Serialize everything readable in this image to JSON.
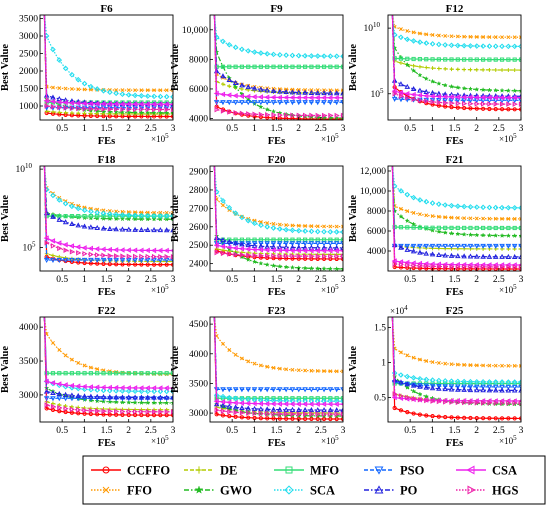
{
  "algorithms": [
    {
      "name": "CCFFO",
      "color": "#ff0000",
      "dash": "solid",
      "marker": "circle"
    },
    {
      "name": "FFO",
      "color": "#ff9900",
      "dash": "dotted",
      "marker": "x"
    },
    {
      "name": "DE",
      "color": "#b3cc00",
      "dash": "dashed",
      "marker": "plus"
    },
    {
      "name": "GWO",
      "color": "#22bb22",
      "dash": "dashdot",
      "marker": "star"
    },
    {
      "name": "MFO",
      "color": "#33dd77",
      "dash": "solid",
      "marker": "square"
    },
    {
      "name": "SCA",
      "color": "#22ddee",
      "dash": "dotted",
      "marker": "diamond"
    },
    {
      "name": "PSO",
      "color": "#1166ff",
      "dash": "dashed",
      "marker": "triangle-down"
    },
    {
      "name": "PO",
      "color": "#2222dd",
      "dash": "dashdot",
      "marker": "triangle-up"
    },
    {
      "name": "CSA",
      "color": "#ee22ee",
      "dash": "solid",
      "marker": "triangle-left"
    },
    {
      "name": "HGS",
      "color": "#ee22aa",
      "dash": "dotted",
      "marker": "triangle-right"
    }
  ],
  "chart_data": [
    {
      "title": "F6",
      "type": "line",
      "xlabel": "FEs",
      "ylabel": "Best Value",
      "x_multiplier": "×10^5",
      "xlim": [
        0,
        3
      ],
      "xticks": [
        0.5,
        1,
        1.5,
        2,
        2.5,
        3
      ],
      "scale": "linear",
      "ylim": [
        600,
        3600
      ],
      "yticks": [
        1000,
        1500,
        2000,
        2500,
        3000,
        3500
      ],
      "y_multiplier": "",
      "series": {
        "CCFFO": [
          800,
          700
        ],
        "FFO": [
          1550,
          1450
        ],
        "DE": [
          850,
          770
        ],
        "GWO": [
          1200,
          800
        ],
        "MFO": [
          1100,
          1100
        ],
        "SCA": [
          3000,
          1250
        ],
        "PSO": [
          950,
          950
        ],
        "PO": [
          1300,
          1050
        ],
        "CSA": [
          1150,
          1050
        ],
        "HGS": [
          1000,
          900
        ]
      }
    },
    {
      "title": "F9",
      "type": "line",
      "xlabel": "FEs",
      "ylabel": "Best Value",
      "x_multiplier": "×10^5",
      "xlim": [
        0,
        3
      ],
      "xticks": [
        0.5,
        1,
        1.5,
        2,
        2.5,
        3
      ],
      "scale": "linear",
      "ylim": [
        3900,
        11000
      ],
      "yticks": [
        4000,
        6000,
        8000,
        10000
      ],
      "y_multiplier": "",
      "series": {
        "CCFFO": [
          4800,
          3950
        ],
        "FFO": [
          7000,
          5900
        ],
        "DE": [
          6500,
          5700
        ],
        "GWO": [
          8500,
          4000
        ],
        "MFO": [
          7500,
          7500
        ],
        "SCA": [
          9500,
          8200
        ],
        "PSO": [
          5100,
          5100
        ],
        "PO": [
          7200,
          5700
        ],
        "CSA": [
          5700,
          5400
        ],
        "HGS": [
          4600,
          4200
        ]
      }
    },
    {
      "title": "F12",
      "type": "line",
      "xlabel": "FEs",
      "ylabel": "Best Value",
      "x_multiplier": "×10^5",
      "xlim": [
        0,
        3
      ],
      "xticks": [
        0.5,
        1,
        1.5,
        2,
        2.5,
        3
      ],
      "scale": "log",
      "ylim": [
        3,
        11
      ],
      "yticks": [
        5,
        10
      ],
      "y_multiplier": "",
      "series": {
        "CCFFO": [
          5.5,
          3.8
        ],
        "FFO": [
          10.1,
          9.3
        ],
        "DE": [
          7.5,
          6.8
        ],
        "GWO": [
          8.5,
          5.2
        ],
        "MFO": [
          7.7,
          7.6
        ],
        "SCA": [
          9.5,
          8.6
        ],
        "PSO": [
          4.6,
          4.5
        ],
        "PO": [
          6.0,
          4.8
        ],
        "CSA": [
          5.2,
          4.7
        ],
        "HGS": [
          5.0,
          4.2
        ]
      }
    },
    {
      "title": "F18",
      "type": "line",
      "xlabel": "FEs",
      "ylabel": "Best Value",
      "x_multiplier": "×10^5",
      "xlim": [
        0,
        3
      ],
      "xticks": [
        0.5,
        1,
        1.5,
        2,
        2.5,
        3
      ],
      "scale": "log",
      "ylim": [
        3.5,
        10.2
      ],
      "yticks": [
        5,
        10
      ],
      "y_multiplier": "",
      "series": {
        "CCFFO": [
          4.4,
          3.9
        ],
        "FFO": [
          8.8,
          7.2
        ],
        "DE": [
          4.6,
          4.1
        ],
        "GWO": [
          7.2,
          6.8
        ],
        "MFO": [
          7.0,
          7.0
        ],
        "SCA": [
          8.7,
          7.0
        ],
        "PSO": [
          4.2,
          4.2
        ],
        "PO": [
          7.2,
          6.1
        ],
        "CSA": [
          5.6,
          4.8
        ],
        "HGS": [
          5.3,
          4.4
        ]
      }
    },
    {
      "title": "F20",
      "type": "line",
      "xlabel": "FEs",
      "ylabel": "Best Value",
      "x_multiplier": "×10^5",
      "xlim": [
        0,
        3
      ],
      "xticks": [
        0.5,
        1,
        1.5,
        2,
        2.5,
        3
      ],
      "scale": "linear",
      "ylim": [
        2360,
        2930
      ],
      "yticks": [
        2400,
        2500,
        2600,
        2700,
        2800,
        2900
      ],
      "y_multiplier": "",
      "series": {
        "CCFFO": [
          2470,
          2425
        ],
        "FFO": [
          2750,
          2600
        ],
        "DE": [
          2480,
          2450
        ],
        "GWO": [
          2550,
          2370
        ],
        "MFO": [
          2530,
          2530
        ],
        "SCA": [
          2790,
          2570
        ],
        "PSO": [
          2510,
          2510
        ],
        "PO": [
          2540,
          2485
        ],
        "CSA": [
          2500,
          2470
        ],
        "HGS": [
          2460,
          2440
        ]
      }
    },
    {
      "title": "F21",
      "type": "line",
      "xlabel": "FEs",
      "ylabel": "Best Value",
      "x_multiplier": "×10^5",
      "xlim": [
        0,
        3
      ],
      "xticks": [
        0.5,
        1,
        1.5,
        2,
        2.5,
        3
      ],
      "scale": "linear",
      "ylim": [
        2000,
        12500
      ],
      "yticks": [
        4000,
        6000,
        8000,
        10000,
        12000
      ],
      "y_multiplier": "",
      "series": {
        "CCFFO": [
          2400,
          2200
        ],
        "FFO": [
          8500,
          7200
        ],
        "DE": [
          4500,
          4200
        ],
        "GWO": [
          8000,
          5500
        ],
        "MFO": [
          6400,
          6300
        ],
        "SCA": [
          10500,
          8300
        ],
        "PSO": [
          4500,
          4500
        ],
        "PO": [
          4600,
          3400
        ],
        "CSA": [
          3000,
          2600
        ],
        "HGS": [
          2700,
          2400
        ]
      }
    },
    {
      "title": "F22",
      "type": "line",
      "xlabel": "FEs",
      "ylabel": "Best Value",
      "x_multiplier": "×10^5",
      "xlim": [
        0,
        3
      ],
      "xticks": [
        0.5,
        1,
        1.5,
        2,
        2.5,
        3
      ],
      "scale": "linear",
      "ylim": [
        2600,
        4150
      ],
      "yticks": [
        3000,
        3500,
        4000
      ],
      "y_multiplier": "",
      "series": {
        "CCFFO": [
          2800,
          2700
        ],
        "FFO": [
          3900,
          3300
        ],
        "DE": [
          2900,
          2780
        ],
        "GWO": [
          3100,
          2880
        ],
        "MFO": [
          3320,
          3320
        ],
        "SCA": [
          3200,
          3050
        ],
        "PSO": [
          2950,
          2950
        ],
        "PO": [
          3050,
          2960
        ],
        "CSA": [
          3200,
          3100
        ],
        "HGS": [
          2850,
          2750
        ]
      }
    },
    {
      "title": "F23",
      "type": "line",
      "xlabel": "FEs",
      "ylabel": "Best Value",
      "x_multiplier": "×10^5",
      "xlim": [
        0,
        3
      ],
      "xticks": [
        0.5,
        1,
        1.5,
        2,
        2.5,
        3
      ],
      "scale": "linear",
      "ylim": [
        2850,
        4620
      ],
      "yticks": [
        3000,
        3500,
        4000,
        4500
      ],
      "y_multiplier": "",
      "series": {
        "CCFFO": [
          2980,
          2900
        ],
        "FFO": [
          4300,
          3700
        ],
        "DE": [
          3100,
          3000
        ],
        "GWO": [
          3150,
          2950
        ],
        "MFO": [
          3250,
          3250
        ],
        "SCA": [
          3300,
          3200
        ],
        "PSO": [
          3400,
          3400
        ],
        "PO": [
          3150,
          3050
        ],
        "CSA": [
          3200,
          3150
        ],
        "HGS": [
          3050,
          2980
        ]
      }
    },
    {
      "title": "F25",
      "type": "line",
      "xlabel": "FEs",
      "ylabel": "Best Value",
      "x_multiplier": "×10^5",
      "xlim": [
        0,
        3
      ],
      "xticks": [
        0.5,
        1,
        1.5,
        2,
        2.5,
        3
      ],
      "scale": "linear",
      "ylim": [
        0.15,
        1.65
      ],
      "yticks": [
        0.5,
        1,
        1.5
      ],
      "y_multiplier": "×10^4",
      "series": {
        "CCFFO": [
          0.35,
          0.2
        ],
        "FFO": [
          1.2,
          0.95
        ],
        "DE": [
          0.55,
          0.45
        ],
        "GWO": [
          0.8,
          0.4
        ],
        "MFO": [
          0.7,
          0.7
        ],
        "SCA": [
          0.85,
          0.72
        ],
        "PSO": [
          0.72,
          0.65
        ],
        "PO": [
          0.75,
          0.6
        ],
        "CSA": [
          0.5,
          0.45
        ],
        "HGS": [
          0.55,
          0.42
        ]
      }
    }
  ]
}
